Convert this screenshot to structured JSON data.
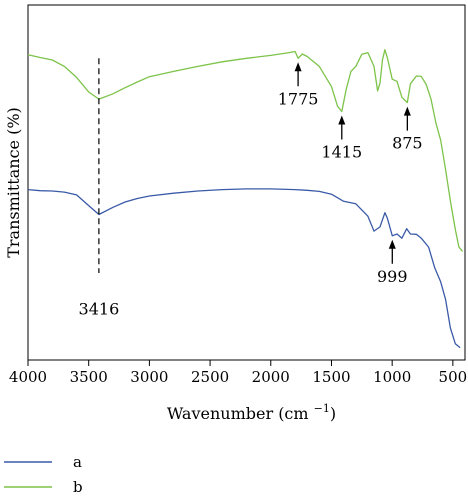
{
  "chart_data": {
    "type": "line",
    "xlabel": "Wavenumber (cm",
    "xlabel_sup": "−1",
    "xlabel_close": ")",
    "ylabel": "Transmittance (%)",
    "xlim": [
      4000,
      400
    ],
    "ylim": [
      0,
      100
    ],
    "x_reversed": true,
    "x_ticks": [
      4000,
      3500,
      3000,
      2500,
      2000,
      1500,
      1000,
      500
    ],
    "legend_position": "bottom-left",
    "series": [
      {
        "name": "a",
        "color": "#3a5aa8",
        "points": [
          [
            4000,
            48
          ],
          [
            3900,
            47.7
          ],
          [
            3800,
            47.6
          ],
          [
            3700,
            47.3
          ],
          [
            3600,
            46.5
          ],
          [
            3500,
            43.5
          ],
          [
            3416,
            41.0
          ],
          [
            3300,
            43.0
          ],
          [
            3200,
            44.5
          ],
          [
            3100,
            45.5
          ],
          [
            3000,
            46.2
          ],
          [
            2800,
            47.0
          ],
          [
            2600,
            47.6
          ],
          [
            2400,
            48.0
          ],
          [
            2200,
            48.2
          ],
          [
            2000,
            48.2
          ],
          [
            1800,
            48.0
          ],
          [
            1700,
            47.8
          ],
          [
            1600,
            47.5
          ],
          [
            1500,
            46.7
          ],
          [
            1400,
            44.7
          ],
          [
            1300,
            44.0
          ],
          [
            1200,
            40.5
          ],
          [
            1150,
            36.3
          ],
          [
            1100,
            37.5
          ],
          [
            1060,
            41.5
          ],
          [
            1040,
            40.0
          ],
          [
            999,
            35.0
          ],
          [
            960,
            35.5
          ],
          [
            920,
            34.3
          ],
          [
            880,
            37.0
          ],
          [
            850,
            35.5
          ],
          [
            800,
            35.4
          ],
          [
            760,
            34.3
          ],
          [
            700,
            31.8
          ],
          [
            650,
            26.0
          ],
          [
            600,
            22.0
          ],
          [
            560,
            17.0
          ],
          [
            520,
            9.0
          ],
          [
            480,
            4.6
          ],
          [
            440,
            3.5
          ]
        ]
      },
      {
        "name": "b",
        "color": "#7dc34a",
        "points": [
          [
            4000,
            86.0
          ],
          [
            3900,
            85.2
          ],
          [
            3800,
            84.5
          ],
          [
            3700,
            82.7
          ],
          [
            3600,
            79.6
          ],
          [
            3500,
            75.5
          ],
          [
            3416,
            73.5
          ],
          [
            3300,
            75.0
          ],
          [
            3200,
            76.7
          ],
          [
            3100,
            78.3
          ],
          [
            3000,
            79.8
          ],
          [
            2800,
            81.3
          ],
          [
            2600,
            82.7
          ],
          [
            2400,
            84.0
          ],
          [
            2200,
            85.0
          ],
          [
            2000,
            85.8
          ],
          [
            1850,
            86.6
          ],
          [
            1800,
            86.9
          ],
          [
            1775,
            85.0
          ],
          [
            1740,
            86.2
          ],
          [
            1700,
            85.5
          ],
          [
            1600,
            82.7
          ],
          [
            1500,
            77.0
          ],
          [
            1450,
            71.5
          ],
          [
            1415,
            70.0
          ],
          [
            1380,
            76.0
          ],
          [
            1340,
            81.3
          ],
          [
            1300,
            82.7
          ],
          [
            1250,
            86.1
          ],
          [
            1200,
            86.6
          ],
          [
            1150,
            82.7
          ],
          [
            1120,
            75.8
          ],
          [
            1100,
            78.0
          ],
          [
            1080,
            84.6
          ],
          [
            1060,
            87.4
          ],
          [
            1040,
            85.2
          ],
          [
            1000,
            79.1
          ],
          [
            960,
            78.5
          ],
          [
            920,
            74.0
          ],
          [
            875,
            72.5
          ],
          [
            850,
            77.8
          ],
          [
            800,
            80.0
          ],
          [
            760,
            79.9
          ],
          [
            720,
            77.6
          ],
          [
            680,
            73.5
          ],
          [
            640,
            66.8
          ],
          [
            600,
            61.9
          ],
          [
            560,
            53.6
          ],
          [
            520,
            44.8
          ],
          [
            480,
            36.8
          ],
          [
            450,
            31.8
          ],
          [
            420,
            30.6
          ]
        ]
      }
    ],
    "annotations": [
      {
        "label": "1775",
        "x": 1775,
        "type": "arrow",
        "series": "b"
      },
      {
        "label": "1415",
        "x": 1415,
        "type": "arrow",
        "series": "b"
      },
      {
        "label": "875",
        "x": 875,
        "type": "arrow",
        "series": "b"
      },
      {
        "label": "999",
        "x": 999,
        "type": "arrow",
        "series": "a"
      },
      {
        "label": "3416",
        "x": 3416,
        "type": "dashed-line"
      }
    ]
  }
}
